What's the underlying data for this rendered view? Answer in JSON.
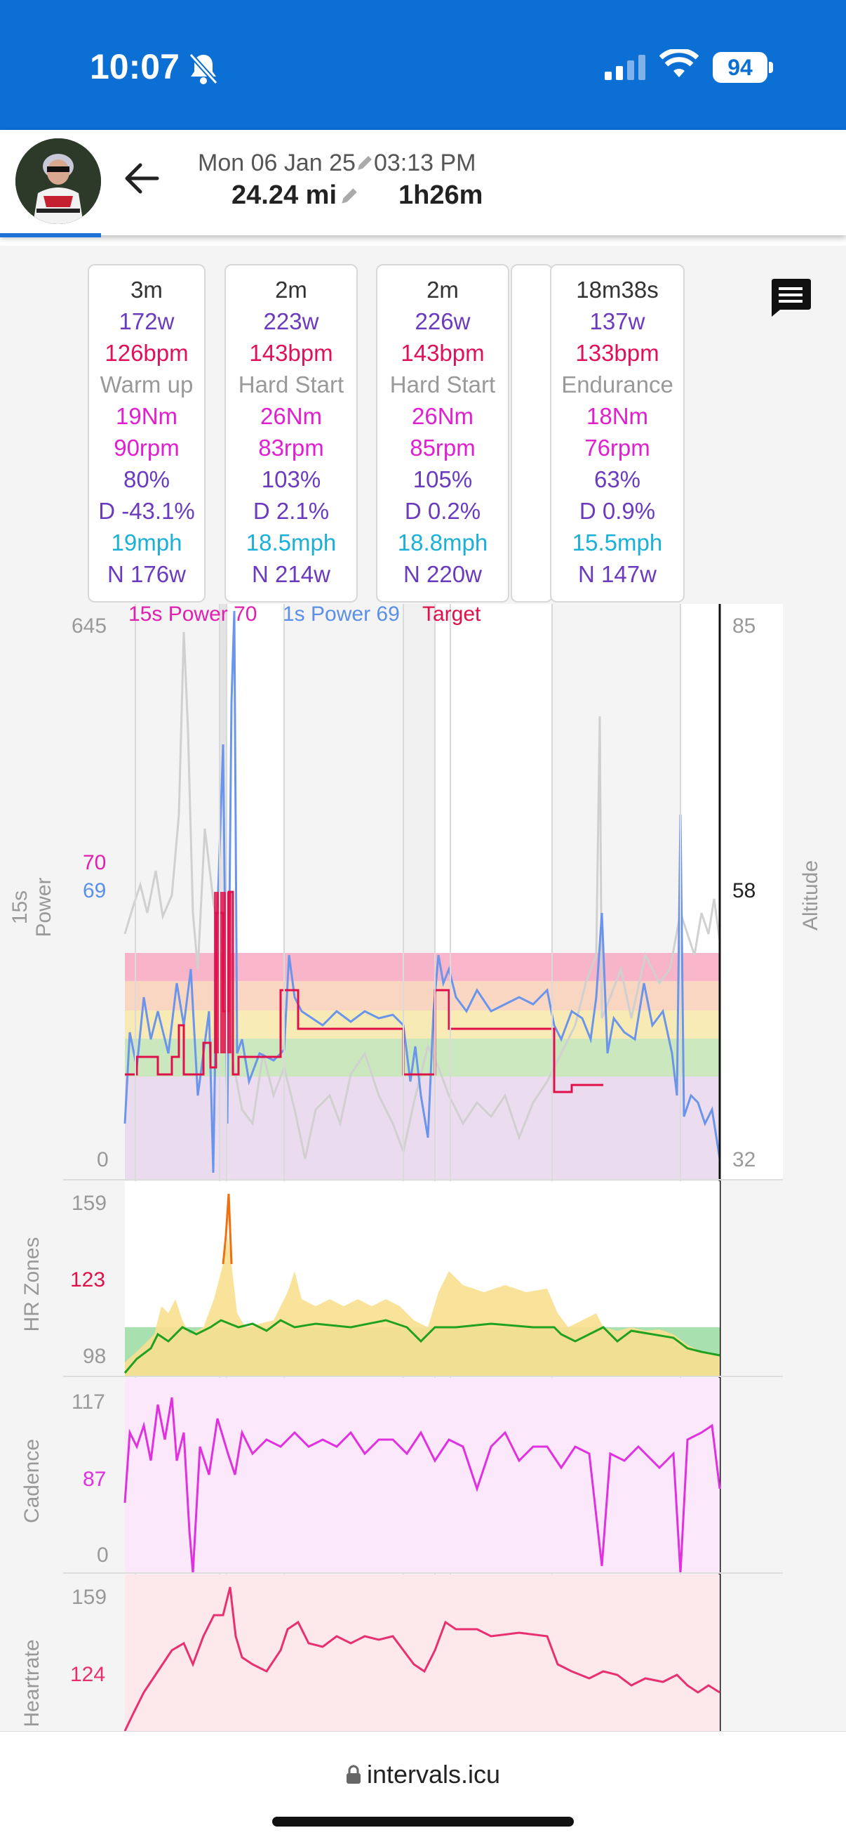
{
  "status": {
    "time": "10:07",
    "battery": "94"
  },
  "header": {
    "date": "Mon 06 Jan 25",
    "time": "03:13 PM",
    "distance": "24.24 mi",
    "duration": "1h26m"
  },
  "intervals": [
    {
      "duration": "3m",
      "watts": "172w",
      "hr": "126bpm",
      "label": "Warm up",
      "torque": "19Nm",
      "cadence": "90rpm",
      "pct": "80%",
      "decoupling": "D -43.1%",
      "speed": "19mph",
      "np": "N 176w"
    },
    {
      "duration": "2m",
      "watts": "223w",
      "hr": "143bpm",
      "label": "Hard Start",
      "torque": "26Nm",
      "cadence": "83rpm",
      "pct": "103%",
      "decoupling": "D 2.1%",
      "speed": "18.5mph",
      "np": "N 214w"
    },
    {
      "duration": "2m",
      "watts": "226w",
      "hr": "143bpm",
      "label": "Hard Start",
      "torque": "26Nm",
      "cadence": "85rpm",
      "pct": "105%",
      "decoupling": "D 0.2%",
      "speed": "18.8mph",
      "np": "N 220w"
    },
    {
      "duration": "18m38s",
      "watts": "137w",
      "hr": "133bpm",
      "label": "Endurance",
      "torque": "18Nm",
      "cadence": "76rpm",
      "pct": "63%",
      "decoupling": "D 0.9%",
      "speed": "15.5mph",
      "np": "N 147w"
    }
  ],
  "legend": {
    "p15": "15s Power 70",
    "p1": "1s Power 69",
    "target": "Target"
  },
  "power_panel": {
    "ylabel": "15s Power",
    "ymax": "645",
    "ymin": "0",
    "val15": "70",
    "val1": "69",
    "alt_label": "Altitude",
    "alt_max": "85",
    "alt_cur": "58",
    "alt_min": "32"
  },
  "hr_panel": {
    "ylabel": "HR Zones",
    "ymax": "159",
    "ycur": "123",
    "ymin": "98"
  },
  "cad_panel": {
    "ylabel": "Cadence",
    "ymax": "117",
    "ycur": "87",
    "ymin": "0"
  },
  "heart_panel": {
    "ylabel": "Heartrate",
    "ymax": "159",
    "ycur": "124"
  },
  "footer": {
    "url": "intervals.icu"
  },
  "colors": {
    "brand_blue": "#0b6fd4",
    "power15": "#e020b0",
    "power1": "#5b8fe8",
    "target": "#e0104a",
    "cadence": "#e030e0",
    "heartrate": "#e83070"
  }
}
